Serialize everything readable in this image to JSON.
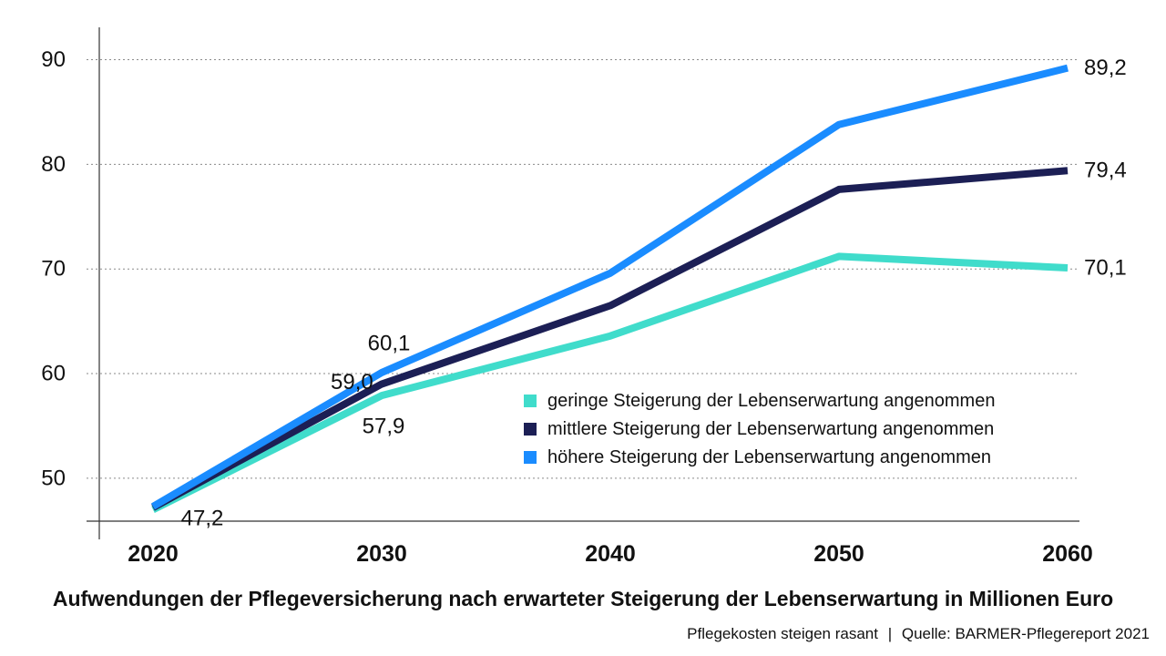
{
  "colors": {
    "gering": "#40DCCB",
    "mittel": "#1C1F55",
    "hoch": "#1A8CFF",
    "grid": "#8a8a8a",
    "axis": "#333333"
  },
  "caption": "Aufwendungen der Pflegeversicherung nach erwarteter Steigerung der Lebenserwartung in Millionen Euro",
  "source": {
    "left": "Pflegekosten steigen rasant",
    "separator": "|",
    "right": "Quelle: BARMER-Pflegereport 2021"
  },
  "chart_data": {
    "type": "line",
    "title": "",
    "xlabel": "",
    "ylabel": "",
    "x": [
      2020,
      2030,
      2040,
      2050,
      2060
    ],
    "x_tick_labels": [
      "2020",
      "2030",
      "2040",
      "2050",
      "2060"
    ],
    "ylim": [
      45.9,
      91
    ],
    "y_ticks": [
      50,
      60,
      70,
      80,
      90
    ],
    "y_tick_labels": [
      "50",
      "60",
      "70",
      "80",
      "90"
    ],
    "grid": "horizontal-dotted",
    "legend_position": "bottom-right",
    "series": [
      {
        "key": "gering",
        "name": "geringe Steigerung der Lebenserwartung angenommen",
        "values": [
          47.0,
          57.9,
          63.6,
          71.2,
          70.1
        ]
      },
      {
        "key": "mittel",
        "name": "mittlere Steigerung der Lebenserwartung angenommen",
        "values": [
          47.2,
          59.0,
          66.5,
          77.6,
          79.4
        ]
      },
      {
        "key": "hoch",
        "name": "höhere Steigerung der Lebenserwartung angenommen",
        "values": [
          47.3,
          60.1,
          69.6,
          83.8,
          89.2
        ]
      }
    ],
    "data_labels": [
      {
        "text": "47,2",
        "x": 2020,
        "y": 47.2,
        "pos": "below-right"
      },
      {
        "text": "57,9",
        "x": 2030,
        "y": 57.9,
        "pos": "below"
      },
      {
        "text": "59,0",
        "x": 2030,
        "y": 59.0,
        "pos": "left"
      },
      {
        "text": "60,1",
        "x": 2030,
        "y": 60.1,
        "pos": "above"
      },
      {
        "text": "89,2",
        "x": 2060,
        "y": 89.2,
        "pos": "right"
      },
      {
        "text": "79,4",
        "x": 2060,
        "y": 79.4,
        "pos": "right"
      },
      {
        "text": "70,1",
        "x": 2060,
        "y": 70.1,
        "pos": "right"
      }
    ]
  }
}
